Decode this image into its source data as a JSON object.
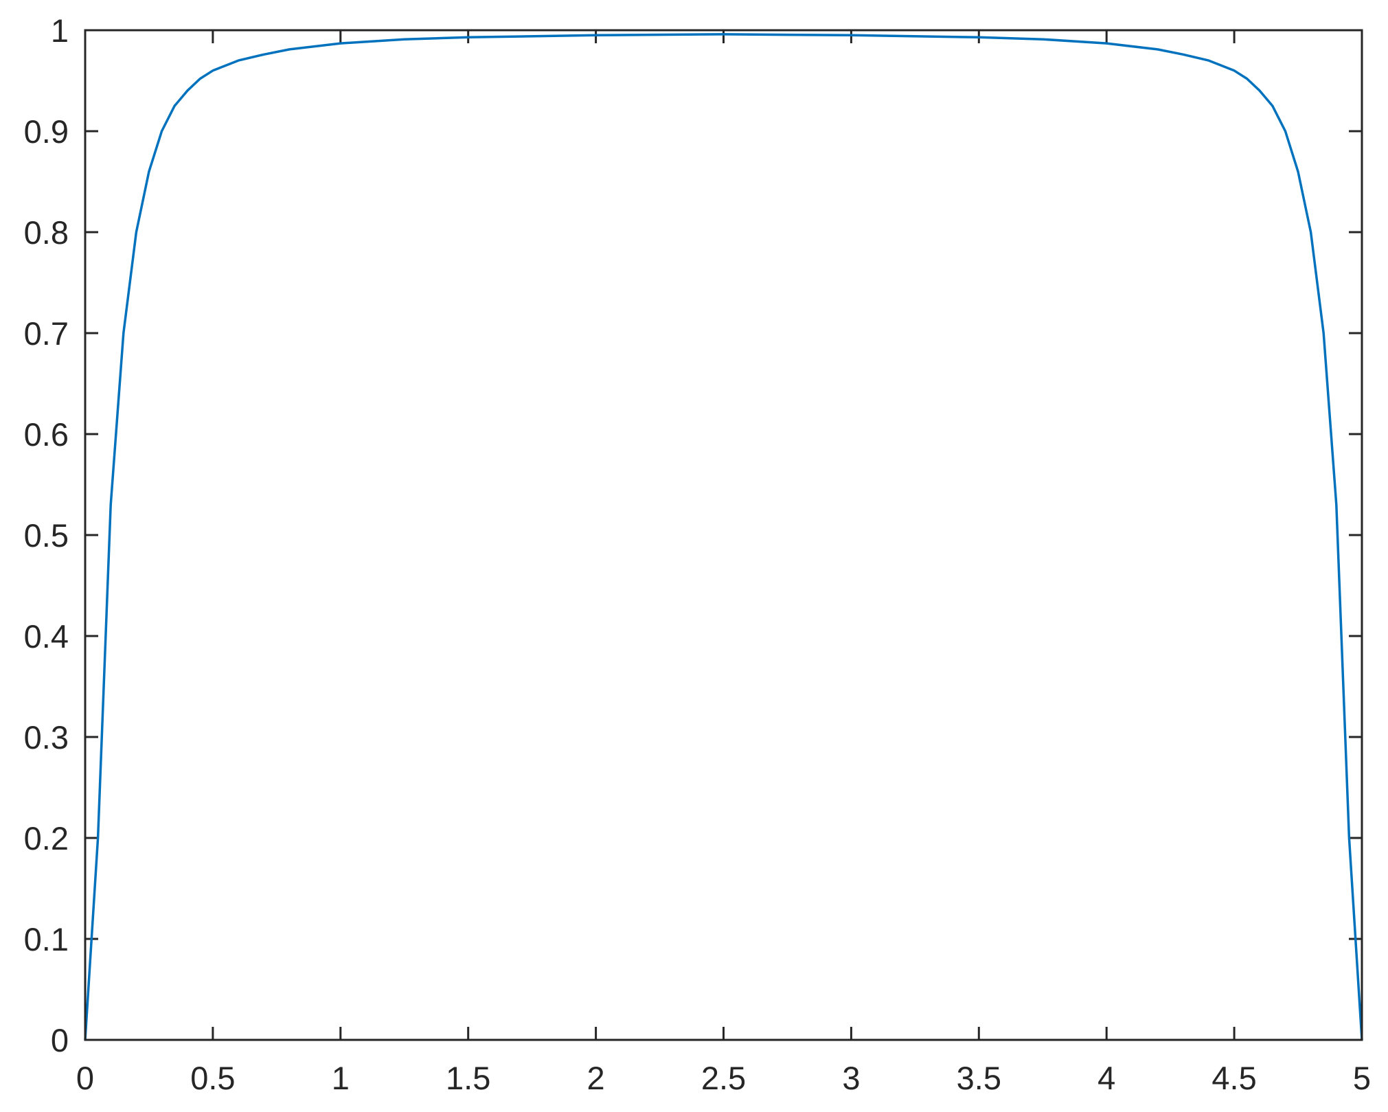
{
  "chart_data": {
    "type": "line",
    "title": "",
    "xlabel": "",
    "ylabel": "",
    "xlim": [
      0,
      5
    ],
    "ylim": [
      0,
      1
    ],
    "grid": false,
    "box": true,
    "xticks": [
      "0",
      "0.5",
      "1",
      "1.5",
      "2",
      "2.5",
      "3",
      "3.5",
      "4",
      "4.5",
      "5"
    ],
    "yticks": [
      "0",
      "0.1",
      "0.2",
      "0.3",
      "0.4",
      "0.5",
      "0.6",
      "0.7",
      "0.8",
      "0.9",
      "1"
    ],
    "colors": {
      "axes": "#262626",
      "line": "#0072BD",
      "background": "#ffffff"
    },
    "series": [
      {
        "x": [
          0,
          0.05,
          0.1,
          0.15,
          0.2,
          0.25,
          0.3,
          0.35,
          0.4,
          0.45,
          0.5,
          0.6,
          0.7,
          0.8,
          1,
          1.25,
          1.5,
          2,
          2.5,
          3,
          3.5,
          3.75,
          4,
          4.2,
          4.3,
          4.4,
          4.5,
          4.55,
          4.6,
          4.65,
          4.7,
          4.75,
          4.8,
          4.85,
          4.9,
          4.95,
          5
        ],
        "y": [
          0,
          0.2,
          0.53,
          0.7,
          0.8,
          0.86,
          0.9,
          0.925,
          0.94,
          0.952,
          0.96,
          0.97,
          0.976,
          0.981,
          0.987,
          0.991,
          0.993,
          0.995,
          0.996,
          0.995,
          0.993,
          0.991,
          0.987,
          0.981,
          0.976,
          0.97,
          0.96,
          0.952,
          0.94,
          0.925,
          0.9,
          0.86,
          0.8,
          0.7,
          0.53,
          0.2,
          0
        ]
      }
    ]
  }
}
